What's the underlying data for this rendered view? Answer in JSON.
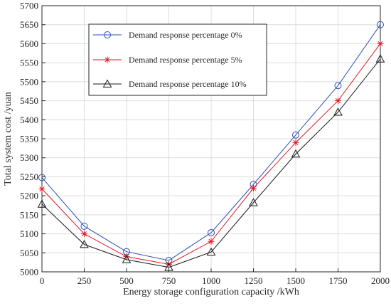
{
  "chart_data": {
    "type": "line",
    "title": "",
    "xlabel": "Energy storage configuration capacity /kWh",
    "ylabel": "Total system cost /yuan",
    "x": [
      0,
      250,
      500,
      750,
      1000,
      1250,
      1500,
      1750,
      2000
    ],
    "xlim": [
      0,
      2000
    ],
    "ylim": [
      5000,
      5700
    ],
    "xticks": [
      "0",
      "250",
      "500",
      "750",
      "1000",
      "1250",
      "1500",
      "1750",
      "2000"
    ],
    "yticks": [
      "5000",
      "5050",
      "5100",
      "5150",
      "5200",
      "5250",
      "5300",
      "5350",
      "5400",
      "5450",
      "5500",
      "5550",
      "5600",
      "5650",
      "5700"
    ],
    "grid": true,
    "legend_position": "top-left",
    "series": [
      {
        "name": "Demand response percentage 0%",
        "color": "#2b50b8",
        "marker": "circle",
        "values": [
          5248,
          5120,
          5053,
          5030,
          5103,
          5230,
          5360,
          5490,
          5650
        ]
      },
      {
        "name": "Demand response percentage 5%",
        "color": "#e8161f",
        "marker": "asterisk",
        "values": [
          5218,
          5100,
          5040,
          5020,
          5080,
          5220,
          5340,
          5450,
          5600
        ]
      },
      {
        "name": "Demand response percentage 10%",
        "color": "#1a1a1a",
        "marker": "triangle",
        "values": [
          5178,
          5072,
          5032,
          5012,
          5052,
          5182,
          5310,
          5420,
          5560
        ]
      }
    ]
  }
}
